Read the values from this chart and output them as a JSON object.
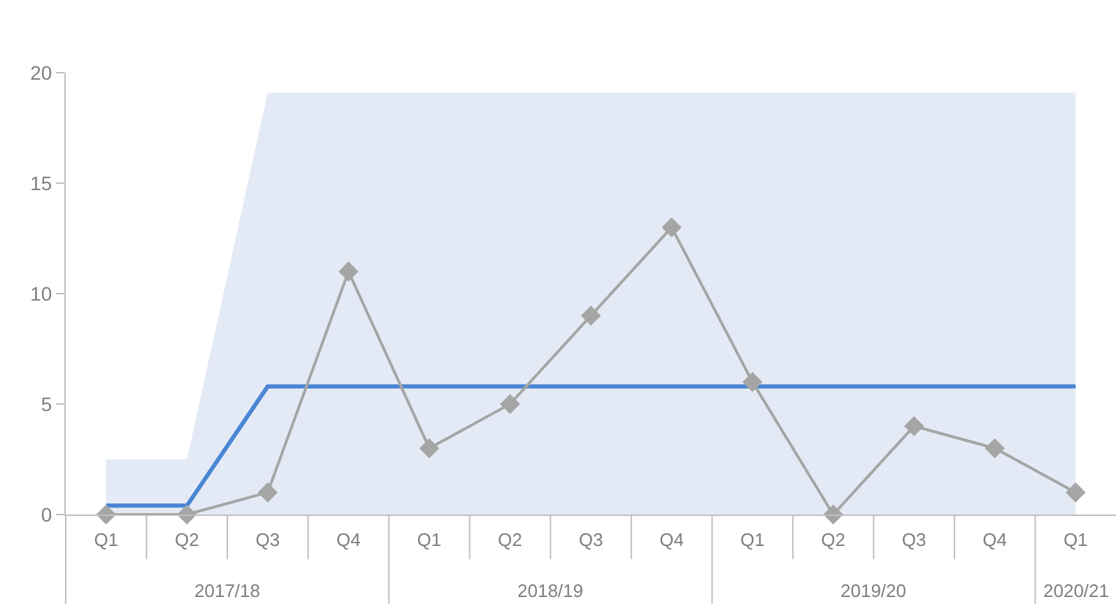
{
  "chart_data": {
    "type": "line",
    "categories": [
      "Q1",
      "Q2",
      "Q3",
      "Q4",
      "Q1",
      "Q2",
      "Q3",
      "Q4",
      "Q1",
      "Q2",
      "Q3",
      "Q4",
      "Q1"
    ],
    "annotations": [
      "2017/18",
      "2018/19",
      "2019/20",
      "2020/21"
    ],
    "series": [
      {
        "type": "area",
        "color": "#e4eaf5",
        "values": [
          2.5,
          2.5,
          19.1,
          19.1,
          19.1,
          19.1,
          19.1,
          19.1,
          19.1,
          19.1,
          19.1,
          19.1,
          19.1
        ]
      },
      {
        "color": "#4a86d4",
        "values": [
          0.4,
          0.4,
          5.8,
          5.8,
          5.8,
          5.8,
          5.8,
          5.8,
          5.8,
          5.8,
          5.8,
          5.8,
          5.8
        ]
      },
      {
        "color": "#a5a5a5",
        "marker": "diamond",
        "values": [
          0,
          0,
          1,
          11,
          3,
          5,
          9,
          13,
          6,
          0,
          4,
          3,
          1
        ]
      }
    ],
    "ylim": [
      0,
      20
    ],
    "yticks": [
      0,
      5,
      10,
      15,
      20
    ]
  }
}
